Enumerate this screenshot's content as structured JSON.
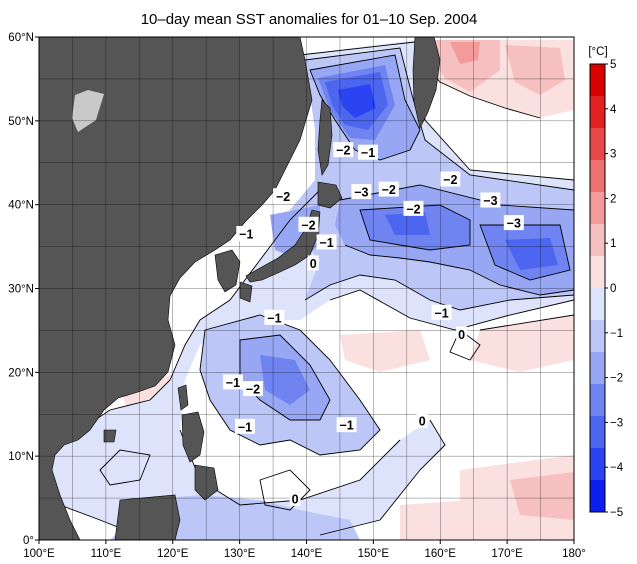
{
  "title": "10–day mean SST anomalies for 01–10 Sep. 2004",
  "x_ticks": [
    "100°E",
    "110°E",
    "120°E",
    "130°E",
    "140°E",
    "150°E",
    "160°E",
    "170°E",
    "180°"
  ],
  "y_ticks": [
    "60°N",
    "50°N",
    "40°N",
    "30°N",
    "20°N",
    "10°N",
    "0°"
  ],
  "extent": {
    "lon_min": 100,
    "lon_max": 180,
    "lat_min": 0,
    "lat_max": 60
  },
  "colorbar": {
    "unit": "[°C]",
    "labels": [
      "5",
      "4",
      "3",
      "2",
      "1",
      "0",
      "−1",
      "−2",
      "−3",
      "−4",
      "−5"
    ],
    "min": -5,
    "max": 5,
    "colors_cold": [
      "#0a1ef0",
      "#2a44f2",
      "#4c66f0",
      "#6f84f1",
      "#97a7f4",
      "#bcc6f7",
      "#dde3fb"
    ],
    "colors_warm": [
      "#fbe0e0",
      "#f7c0c0",
      "#f39a9a",
      "#ee7070",
      "#e84848",
      "#e22020",
      "#db0000"
    ],
    "land_color": "#555555"
  },
  "contour_labels": [
    {
      "text": "−2",
      "lon": 145.5,
      "lat": 46.5
    },
    {
      "text": "−1",
      "lon": 149.2,
      "lat": 46.2
    },
    {
      "text": "−2",
      "lon": 136.5,
      "lat": 41.0
    },
    {
      "text": "−3",
      "lon": 148.2,
      "lat": 41.5
    },
    {
      "text": "−2",
      "lon": 152.3,
      "lat": 41.8
    },
    {
      "text": "−2",
      "lon": 161.5,
      "lat": 43.0
    },
    {
      "text": "−2",
      "lon": 156.0,
      "lat": 39.5
    },
    {
      "text": "−3",
      "lon": 167.5,
      "lat": 40.5
    },
    {
      "text": "−3",
      "lon": 171.0,
      "lat": 37.8
    },
    {
      "text": "−1",
      "lon": 131.0,
      "lat": 36.5
    },
    {
      "text": "−2",
      "lon": 140.3,
      "lat": 37.6
    },
    {
      "text": "−1",
      "lon": 143.0,
      "lat": 35.5
    },
    {
      "text": "0",
      "lon": 141.0,
      "lat": 33.0
    },
    {
      "text": "−1",
      "lon": 135.2,
      "lat": 26.5
    },
    {
      "text": "−1",
      "lon": 160.2,
      "lat": 27.1
    },
    {
      "text": "0",
      "lon": 163.2,
      "lat": 24.5
    },
    {
      "text": "−1",
      "lon": 129.0,
      "lat": 18.8
    },
    {
      "text": "−2",
      "lon": 132.0,
      "lat": 18.0
    },
    {
      "text": "−1",
      "lon": 130.8,
      "lat": 13.5
    },
    {
      "text": "−1",
      "lon": 146.0,
      "lat": 13.7
    },
    {
      "text": "0",
      "lon": 157.3,
      "lat": 14.2
    },
    {
      "text": "0",
      "lon": 138.3,
      "lat": 4.9
    }
  ]
}
